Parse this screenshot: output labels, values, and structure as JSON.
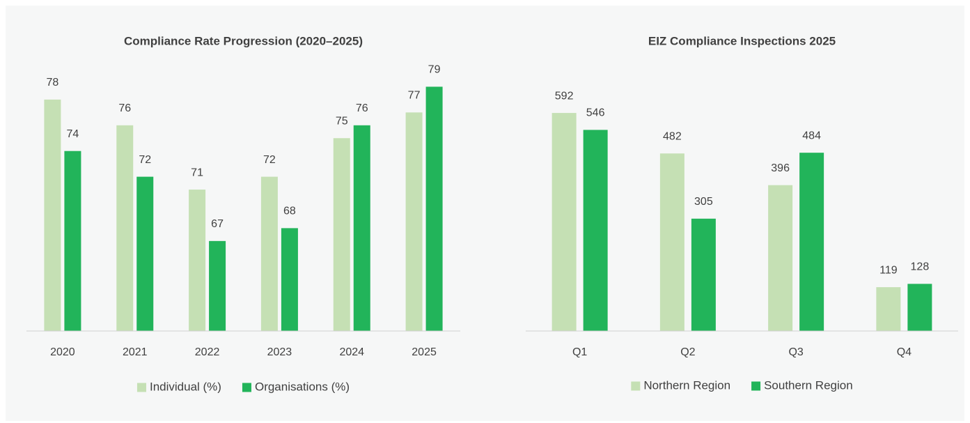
{
  "chart_data": [
    {
      "type": "bar",
      "title": "Compliance  Rate Progression (2020–2025)",
      "categories": [
        "2020",
        "2021",
        "2022",
        "2023",
        "2024",
        "2025"
      ],
      "series": [
        {
          "name": "Individual (%)",
          "color": "#c5e0b4",
          "values": [
            78,
            76,
            71,
            72,
            75,
            77
          ]
        },
        {
          "name": "Organisations (%)",
          "color": "#22b45a",
          "values": [
            74,
            72,
            67,
            68,
            76,
            79
          ]
        }
      ],
      "ylim": [
        60,
        80
      ],
      "legend": "bottom"
    },
    {
      "type": "bar",
      "title": "EIZ Compliance  Inspections 2025",
      "categories": [
        "Q1",
        "Q2",
        "Q3",
        "Q4"
      ],
      "series": [
        {
          "name": "Northern Region",
          "color": "#c5e0b4",
          "values": [
            592,
            482,
            396,
            119
          ]
        },
        {
          "name": "Southern Region",
          "color": "#22b45a",
          "values": [
            546,
            305,
            484,
            128
          ]
        }
      ],
      "ylim": [
        0,
        700
      ],
      "legend": "bottom"
    }
  ]
}
